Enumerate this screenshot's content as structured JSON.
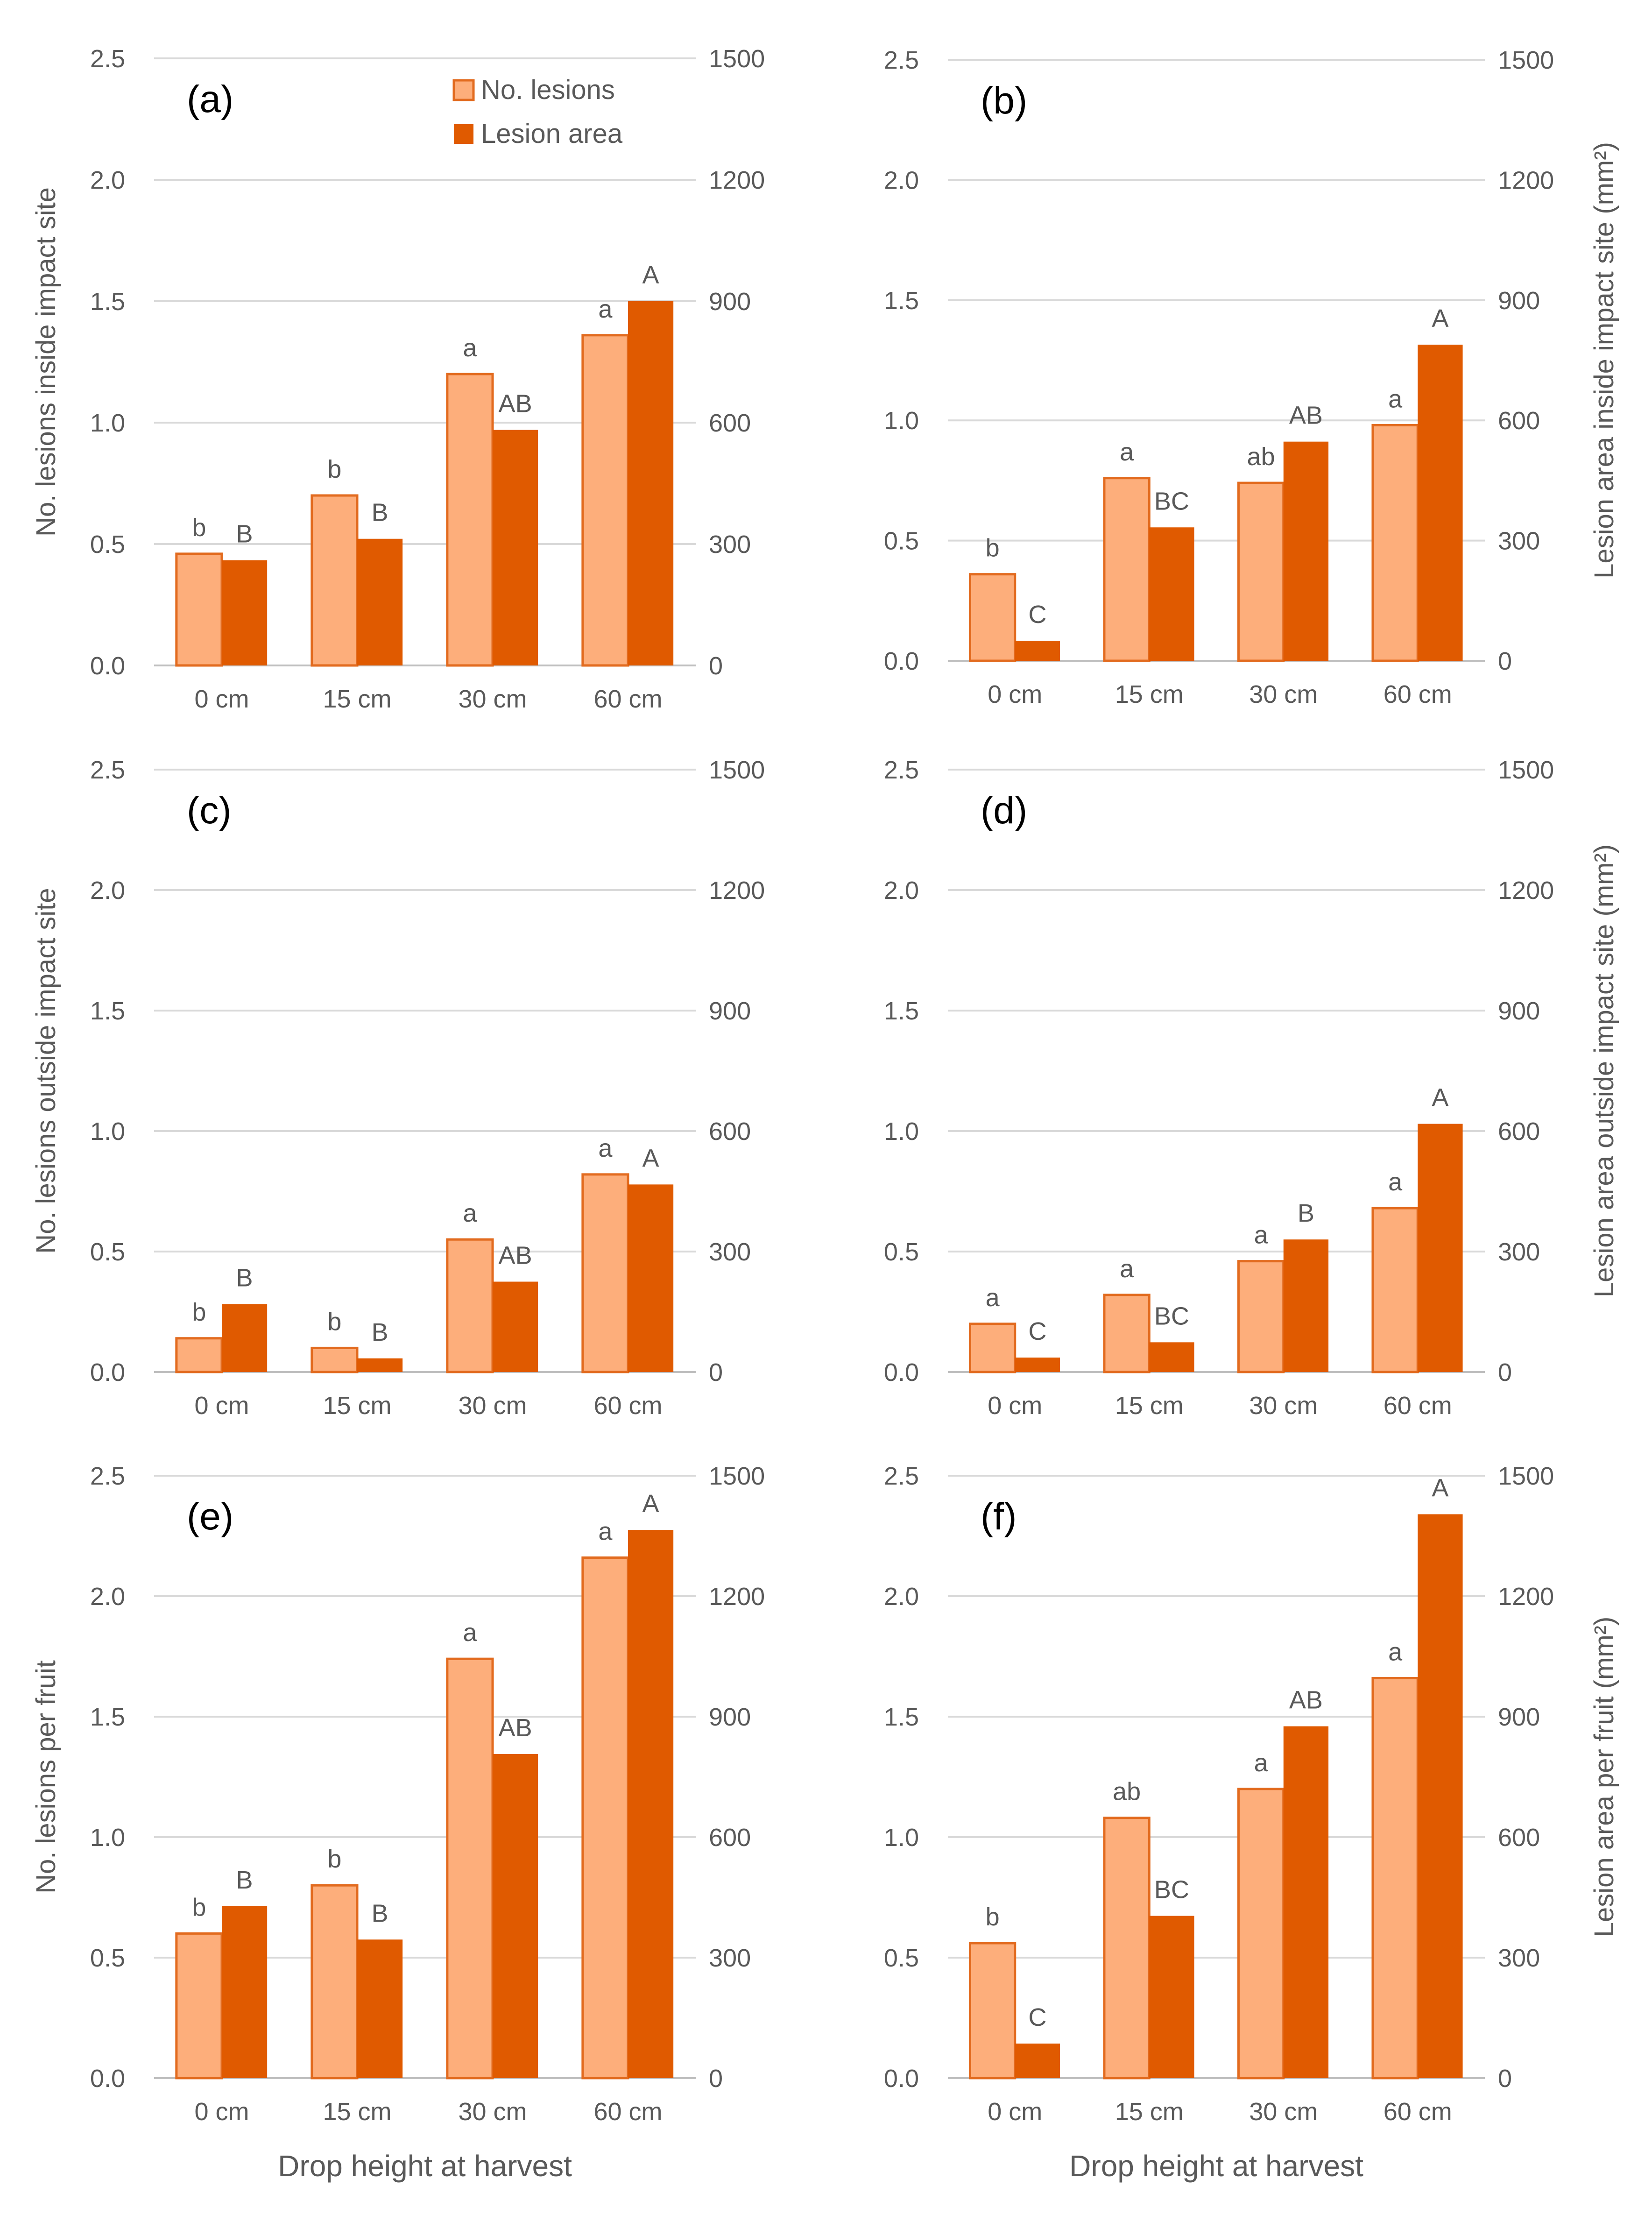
{
  "figure": {
    "legend": {
      "light": "No. lesions",
      "dark": "Lesion area"
    },
    "x_axis_title": "Drop height at harvest",
    "colors": {
      "light": "#fdae7b",
      "light_border": "#e26b1f",
      "dark": "#e05a00",
      "grid": "#d9d9d9",
      "text": "#595959"
    }
  },
  "chart_data": [
    {
      "type": "bar",
      "panel": "(a)",
      "categories": [
        "0 cm",
        "15 cm",
        "30 cm",
        "60 cm"
      ],
      "ylabel": "No. lesions inside impact site",
      "y2label": "",
      "ylim": [
        0,
        2.5
      ],
      "y2lim": [
        0,
        1500
      ],
      "yticks": [
        "0.0",
        "0.5",
        "1.0",
        "1.5",
        "2.0",
        "2.5"
      ],
      "y2ticks": [
        "0",
        "300",
        "600",
        "900",
        "1200",
        "1500"
      ],
      "series": [
        {
          "name": "No. lesions",
          "axis": "left",
          "values": [
            0.46,
            0.7,
            1.2,
            1.36
          ],
          "labels": [
            "b",
            "b",
            "a",
            "a"
          ]
        },
        {
          "name": "Lesion area",
          "axis": "right",
          "values": [
            260,
            313,
            582,
            900
          ],
          "labels": [
            "B",
            "B",
            "AB",
            "A"
          ]
        }
      ]
    },
    {
      "type": "bar",
      "panel": "(b)",
      "categories": [
        "0 cm",
        "15 cm",
        "30 cm",
        "60 cm"
      ],
      "ylabel": "",
      "y2label": "Lesion area inside impact site (mm²)",
      "ylim": [
        0,
        2.5
      ],
      "y2lim": [
        0,
        1500
      ],
      "yticks": [
        "0.0",
        "0.5",
        "1.0",
        "1.5",
        "2.0",
        "2.5"
      ],
      "y2ticks": [
        "0",
        "300",
        "600",
        "900",
        "1200",
        "1500"
      ],
      "series": [
        {
          "name": "No. lesions",
          "axis": "left",
          "values": [
            0.36,
            0.76,
            0.74,
            0.98
          ],
          "labels": [
            "b",
            "a",
            "ab",
            "a"
          ]
        },
        {
          "name": "Lesion area",
          "axis": "right",
          "values": [
            50,
            333,
            547,
            789
          ],
          "labels": [
            "C",
            "BC",
            "AB",
            "A"
          ]
        }
      ]
    },
    {
      "type": "bar",
      "panel": "(c)",
      "categories": [
        "0 cm",
        "15 cm",
        "30 cm",
        "60 cm"
      ],
      "ylabel": "No. lesions outside impact site",
      "y2label": "",
      "ylim": [
        0,
        2.5
      ],
      "y2lim": [
        0,
        1500
      ],
      "yticks": [
        "0.0",
        "0.5",
        "1.0",
        "1.5",
        "2.0",
        "2.5"
      ],
      "y2ticks": [
        "0",
        "300",
        "600",
        "900",
        "1200",
        "1500"
      ],
      "series": [
        {
          "name": "No. lesions",
          "axis": "left",
          "values": [
            0.14,
            0.1,
            0.55,
            0.82
          ],
          "labels": [
            "b",
            "b",
            "a",
            "a"
          ]
        },
        {
          "name": "Lesion area",
          "axis": "right",
          "values": [
            169,
            34,
            225,
            467
          ],
          "labels": [
            "B",
            "B",
            "AB",
            "A"
          ]
        }
      ]
    },
    {
      "type": "bar",
      "panel": "(d)",
      "categories": [
        "0 cm",
        "15 cm",
        "30 cm",
        "60 cm"
      ],
      "ylabel": "",
      "y2label": "Lesion area outside impact site (mm²)",
      "ylim": [
        0,
        2.5
      ],
      "y2lim": [
        0,
        1500
      ],
      "yticks": [
        "0.0",
        "0.5",
        "1.0",
        "1.5",
        "2.0",
        "2.5"
      ],
      "y2ticks": [
        "0",
        "300",
        "600",
        "900",
        "1200",
        "1500"
      ],
      "series": [
        {
          "name": "No. lesions",
          "axis": "left",
          "values": [
            0.2,
            0.32,
            0.46,
            0.68
          ],
          "labels": [
            "a",
            "a",
            "a",
            "a"
          ]
        },
        {
          "name": "Lesion area",
          "axis": "right",
          "values": [
            36,
            74,
            330,
            618
          ],
          "labels": [
            "C",
            "BC",
            "B",
            "A"
          ]
        }
      ]
    },
    {
      "type": "bar",
      "panel": "(e)",
      "categories": [
        "0 cm",
        "15 cm",
        "30 cm",
        "60 cm"
      ],
      "ylabel": "No. lesions per fruit",
      "y2label": "",
      "ylim": [
        0,
        2.5
      ],
      "y2lim": [
        0,
        1500
      ],
      "yticks": [
        "0.0",
        "0.5",
        "1.0",
        "1.5",
        "2.0",
        "2.5"
      ],
      "y2ticks": [
        "0",
        "300",
        "600",
        "900",
        "1200",
        "1500"
      ],
      "series": [
        {
          "name": "No. lesions",
          "axis": "left",
          "values": [
            0.6,
            0.8,
            1.74,
            2.16
          ],
          "labels": [
            "b",
            "b",
            "a",
            "a"
          ]
        },
        {
          "name": "Lesion area",
          "axis": "right",
          "values": [
            428,
            345,
            807,
            1365
          ],
          "labels": [
            "B",
            "B",
            "AB",
            "A"
          ]
        }
      ]
    },
    {
      "type": "bar",
      "panel": "(f)",
      "categories": [
        "0 cm",
        "15 cm",
        "30 cm",
        "60 cm"
      ],
      "ylabel": "",
      "y2label": "Lesion area per fruit (mm²)",
      "ylim": [
        0,
        2.5
      ],
      "y2lim": [
        0,
        1500
      ],
      "yticks": [
        "0.0",
        "0.5",
        "1.0",
        "1.5",
        "2.0",
        "2.5"
      ],
      "y2ticks": [
        "0",
        "300",
        "600",
        "900",
        "1200",
        "1500"
      ],
      "series": [
        {
          "name": "No. lesions",
          "axis": "left",
          "values": [
            0.56,
            1.08,
            1.2,
            1.66
          ],
          "labels": [
            "b",
            "ab",
            "a",
            "a"
          ]
        },
        {
          "name": "Lesion area",
          "axis": "right",
          "values": [
            86,
            404,
            876,
            1404
          ],
          "labels": [
            "C",
            "BC",
            "AB",
            "A"
          ]
        }
      ]
    }
  ]
}
